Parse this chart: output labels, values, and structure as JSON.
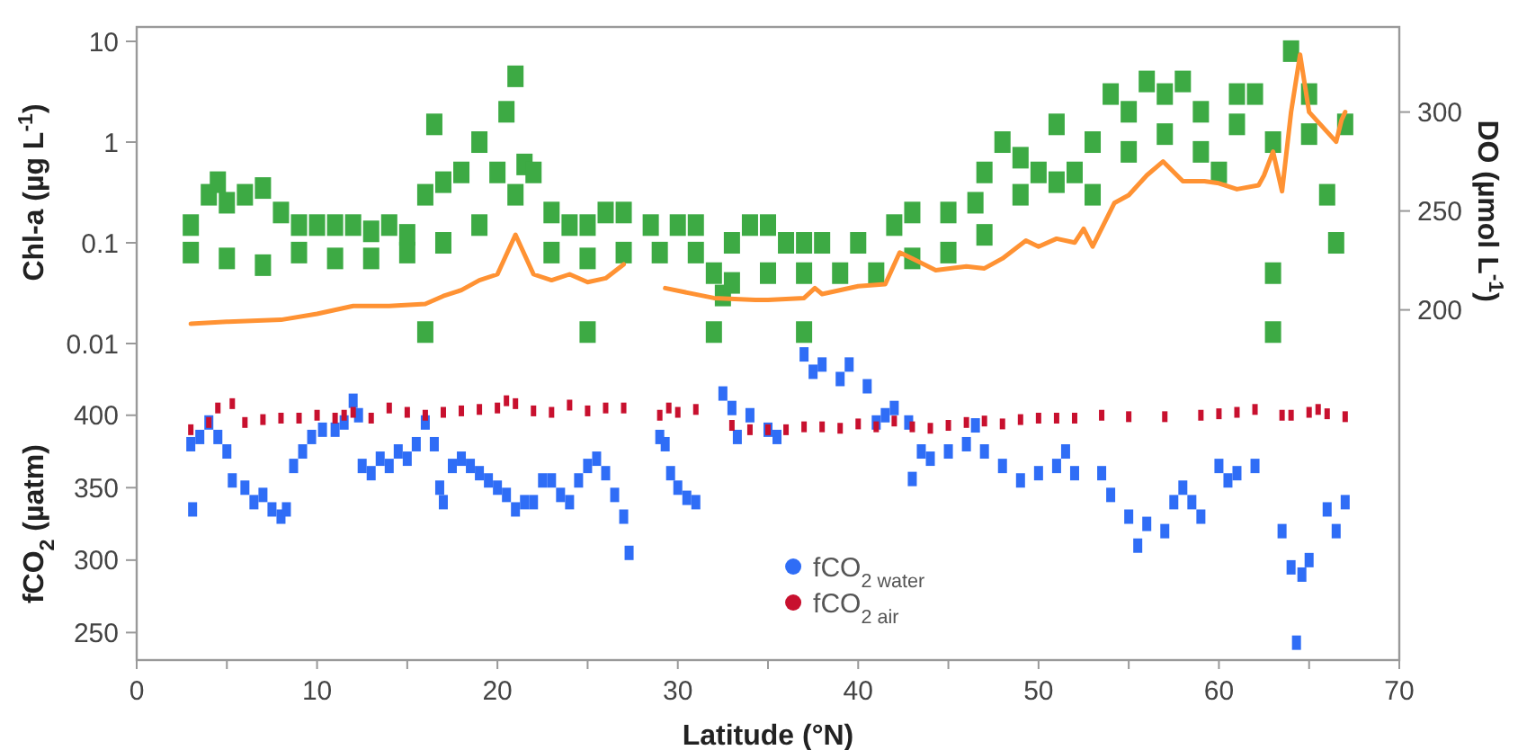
{
  "chart_data": {
    "type": "scatter",
    "xlabel": "Latitude (°N)",
    "ylabel": "Chl-a (µg L$^{-1}$)",
    "y2label": "DO (µmol L$^{-1}$)",
    "y3label": "fCO$_{2}$ (µatm)",
    "xlim": [
      0,
      70
    ],
    "xticks": [
      0,
      {
        "value": 5,
        "label": null
      },
      10,
      {
        "value": 15,
        "label": null
      },
      20,
      {
        "value": 25,
        "label": null
      },
      30,
      {
        "value": 35,
        "label": null
      },
      40,
      {
        "value": 45,
        "label": null
      },
      50,
      {
        "value": 55,
        "label": null
      },
      60,
      {
        "value": 65,
        "label": null
      },
      70
    ],
    "ylim": [
      7.2e-06,
      13.9
    ],
    "yticks": [
      0.01,
      0.1,
      1,
      10
    ],
    "log": "y",
    "y2lim": [
      23,
      343
    ],
    "y2ticks": [
      200,
      250,
      300
    ],
    "y3lim": [
      231,
      668
    ],
    "y3ticks": [
      250,
      300,
      350,
      400
    ],
    "legend": "bottom",
    "series": [
      {
        "axis": "y",
        "marker": "square",
        "color": "#3daa44",
        "x": [
          3,
          4,
          4.5,
          5,
          6,
          7,
          8,
          9,
          10,
          11,
          12,
          13,
          14,
          15,
          16,
          16.5,
          17,
          18,
          19,
          20,
          20.5,
          21,
          21.5,
          22,
          23,
          24,
          25,
          26,
          27,
          28.5,
          30,
          31,
          32,
          32.5,
          33,
          34,
          35,
          36,
          37,
          38,
          40,
          42,
          43,
          45,
          46.5,
          47,
          48,
          49,
          50,
          51,
          52,
          53,
          54,
          55,
          56,
          57,
          58,
          59,
          60,
          61,
          62,
          63,
          64,
          65,
          66,
          67,
          3,
          5,
          7,
          9,
          11,
          13,
          15,
          17,
          19,
          21,
          23,
          25,
          27,
          29,
          31,
          33,
          35,
          37,
          39,
          41,
          43,
          45,
          47,
          49,
          51,
          53,
          55,
          57,
          59,
          61,
          63,
          65,
          66.5,
          25,
          32,
          37,
          63,
          16
        ],
        "values": [
          0.15,
          0.3,
          0.4,
          0.25,
          0.3,
          0.35,
          0.2,
          0.15,
          0.15,
          0.15,
          0.15,
          0.13,
          0.15,
          0.12,
          0.3,
          1.5,
          0.4,
          0.5,
          1,
          0.5,
          2,
          4.5,
          0.6,
          0.5,
          0.2,
          0.15,
          0.15,
          0.2,
          0.2,
          0.15,
          0.15,
          0.15,
          0.05,
          0.03,
          0.1,
          0.15,
          0.15,
          0.1,
          0.1,
          0.1,
          0.1,
          0.15,
          0.2,
          0.2,
          0.25,
          0.5,
          1,
          0.7,
          0.5,
          1.5,
          0.5,
          1,
          3,
          2,
          4,
          3,
          4,
          2,
          0.5,
          3,
          3,
          1,
          8,
          3,
          0.3,
          1.5,
          0.08,
          0.07,
          0.06,
          0.08,
          0.07,
          0.07,
          0.08,
          0.1,
          0.15,
          0.3,
          0.08,
          0.07,
          0.08,
          0.08,
          0.08,
          0.04,
          0.05,
          0.05,
          0.05,
          0.05,
          0.07,
          0.08,
          0.12,
          0.3,
          0.4,
          0.3,
          0.8,
          1.2,
          0.8,
          1.5,
          0.05,
          1.2,
          0.1,
          0.013,
          0.013,
          0.013,
          0.013,
          0.013
        ]
      },
      {
        "type": "line",
        "axis": "y2",
        "color": "#ff9233",
        "x": [
          3,
          5,
          8,
          10,
          12,
          14,
          16,
          17,
          18,
          19,
          20,
          21,
          22,
          23,
          24,
          25,
          26,
          27,
          null,
          29.3,
          32,
          34.3,
          35,
          37,
          37.6,
          38,
          40,
          41.5,
          42.3,
          43,
          44.3,
          46,
          47,
          48,
          49.3,
          50,
          51,
          52,
          52.5,
          53,
          54.2,
          55,
          56,
          56.9,
          58,
          59.2,
          60,
          61,
          62.2,
          62.5,
          63,
          63.5,
          64,
          64.5,
          65,
          66,
          66.5,
          66.8,
          67
        ],
        "values": [
          193,
          194,
          195,
          198,
          202,
          202,
          203,
          207,
          210,
          215,
          218,
          238,
          218,
          215,
          218,
          214,
          216,
          223,
          null,
          211,
          206,
          205,
          205,
          206,
          211,
          208,
          212,
          213,
          229,
          226,
          220,
          222,
          221,
          226,
          235,
          232,
          236,
          234,
          241,
          232,
          254,
          258,
          268,
          275,
          265,
          265,
          264,
          261,
          263,
          268,
          280,
          260,
          300,
          329,
          300,
          290,
          285,
          296,
          300
        ]
      },
      {
        "axis": "y3",
        "marker": "square",
        "name": "fCO$_{2 water}$",
        "color": "#2f6df6",
        "x": [
          3,
          3.1,
          3.5,
          4,
          4.5,
          5,
          5.3,
          6,
          6.5,
          7,
          7.5,
          8,
          8.3,
          8.7,
          9.2,
          9.7,
          10.3,
          11,
          11.5,
          12,
          12.3,
          12.5,
          13,
          13.5,
          14,
          14.5,
          15,
          15.5,
          16,
          16.5,
          16.8,
          17,
          17.5,
          18,
          18.5,
          19,
          19.5,
          20,
          20.5,
          21,
          21.5,
          22,
          22.5,
          23,
          23.5,
          24,
          24.5,
          25,
          25.5,
          26,
          26.5,
          27,
          27.3,
          29,
          29.3,
          29.6,
          30,
          30.5,
          31,
          32.5,
          33,
          33.3,
          34,
          35,
          35.5,
          37,
          37.5,
          38,
          39,
          39.5,
          40.5,
          41,
          41.5,
          42,
          42.8,
          43,
          43.5,
          44,
          45,
          46,
          46.5,
          47,
          48,
          49,
          50,
          51,
          51.5,
          52,
          53.5,
          54,
          55,
          55.5,
          56,
          57,
          57.5,
          58,
          58.5,
          59,
          60,
          60.5,
          61,
          62,
          63.5,
          64,
          64.3,
          64.6,
          65,
          66,
          66.5,
          67
        ],
        "values": [
          380,
          335,
          385,
          395,
          385,
          375,
          355,
          350,
          340,
          345,
          335,
          330,
          335,
          365,
          375,
          385,
          390,
          390,
          395,
          410,
          400,
          365,
          360,
          370,
          365,
          375,
          370,
          380,
          395,
          380,
          350,
          340,
          365,
          370,
          365,
          360,
          355,
          350,
          345,
          335,
          340,
          340,
          355,
          355,
          345,
          340,
          355,
          365,
          370,
          360,
          345,
          330,
          305,
          385,
          380,
          360,
          350,
          343,
          340,
          415,
          405,
          385,
          400,
          390,
          385,
          442,
          430,
          435,
          425,
          435,
          420,
          395,
          400,
          405,
          395,
          356,
          375,
          370,
          375,
          380,
          393,
          375,
          365,
          355,
          360,
          365,
          375,
          360,
          360,
          345,
          330,
          310,
          325,
          320,
          340,
          350,
          340,
          330,
          365,
          355,
          360,
          365,
          320,
          295,
          243,
          290,
          300,
          335,
          320,
          340
        ]
      },
      {
        "axis": "y3",
        "marker": "square",
        "name": "fCO$_{2 air}$",
        "color": "#c8102e",
        "x": [
          3,
          4,
          4.5,
          5.3,
          6,
          7,
          8,
          9,
          10,
          11,
          11.5,
          12,
          13,
          14,
          15,
          16,
          17,
          18,
          19,
          20,
          20.5,
          21,
          22,
          23,
          24,
          25,
          26,
          27,
          29,
          29.5,
          30,
          31,
          33,
          34,
          35,
          36,
          37,
          38,
          39,
          40,
          41,
          42,
          43,
          44,
          45,
          46,
          47,
          48,
          49,
          50,
          51,
          52,
          53.5,
          55,
          57,
          59,
          60,
          61,
          62,
          63.5,
          64,
          65,
          65.5,
          66,
          67
        ],
        "values": [
          390,
          395,
          405,
          408,
          395,
          397,
          398,
          398,
          400,
          398,
          400,
          402,
          398,
          405,
          402,
          400,
          402,
          403,
          404,
          405,
          410,
          408,
          403,
          402,
          407,
          403,
          405,
          405,
          400,
          405,
          402,
          404,
          393,
          390,
          390,
          390,
          392,
          392,
          391,
          394,
          392,
          396,
          392,
          391,
          393,
          395,
          396,
          394,
          397,
          398,
          398,
          398,
          400,
          399,
          399,
          400,
          401,
          402,
          404,
          400,
          400,
          402,
          404,
          401,
          399
        ]
      }
    ]
  }
}
